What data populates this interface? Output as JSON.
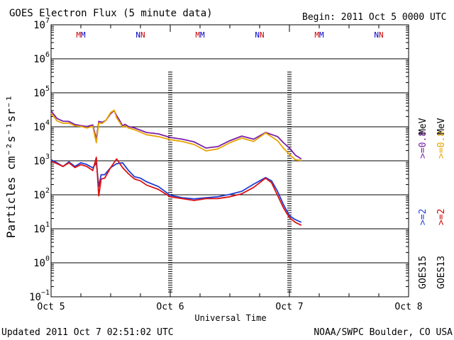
{
  "chart_data": {
    "type": "line",
    "title": "GOES Electron Flux (5 minute data)",
    "begin_label": "Begin: 2011 Oct 5 0000 UTC",
    "xlabel": "Universal Time",
    "ylabel": "Particles cm⁻²s⁻¹sr⁻¹",
    "updated": "Updated 2011 Oct  7 02:51:02 UTC",
    "source": "NOAA/SWPC Boulder, CO USA",
    "x_unit": "days since 2011 Oct 5 0000 UTC",
    "xlim": [
      0,
      3
    ],
    "ylim_log10": [
      -1,
      7
    ],
    "y_scale": "log",
    "x_ticks": [
      {
        "x": 0,
        "label": "Oct 5"
      },
      {
        "x": 1,
        "label": "Oct 6"
      },
      {
        "x": 2,
        "label": "Oct 7"
      },
      {
        "x": 3,
        "label": "Oct 8"
      }
    ],
    "y_ticks": [
      {
        "exp": 7,
        "base": "10",
        "sup": "7"
      },
      {
        "exp": 6,
        "base": "10",
        "sup": "6"
      },
      {
        "exp": 5,
        "base": "10",
        "sup": "5"
      },
      {
        "exp": 4,
        "base": "10",
        "sup": "4"
      },
      {
        "exp": 3,
        "base": "10",
        "sup": "3"
      },
      {
        "exp": 2,
        "base": "10",
        "sup": "2"
      },
      {
        "exp": 1,
        "base": "10",
        "sup": "1"
      },
      {
        "exp": 0,
        "base": "10",
        "sup": "0"
      },
      {
        "exp": -1,
        "base": "10",
        "sup": "−1"
      }
    ],
    "threshold": {
      "value": 1000,
      "label": "1000"
    },
    "day_markers": [
      1,
      2
    ],
    "top_markers": [
      {
        "x": 0.25,
        "label": "M",
        "letters": [
          "M",
          "M"
        ],
        "colors": [
          "#cc0000",
          "#0000cc"
        ]
      },
      {
        "x": 0.75,
        "label": "N",
        "letters": [
          "N",
          "N"
        ],
        "colors": [
          "#0000cc",
          "#cc0000"
        ]
      },
      {
        "x": 1.25,
        "label": "M",
        "letters": [
          "M",
          "M"
        ],
        "colors": [
          "#cc0000",
          "#0000cc"
        ]
      },
      {
        "x": 1.75,
        "label": "N",
        "letters": [
          "N",
          "N"
        ],
        "colors": [
          "#0000cc",
          "#cc0000"
        ]
      },
      {
        "x": 2.25,
        "label": "M",
        "letters": [
          "M",
          "M"
        ],
        "colors": [
          "#cc0000",
          "#0000cc"
        ]
      },
      {
        "x": 2.75,
        "label": "N",
        "letters": [
          "N",
          "N"
        ],
        "colors": [
          "#0000cc",
          "#cc0000"
        ]
      }
    ],
    "legend": {
      "position": "right",
      "rows": [
        {
          "satellite": "GOES13",
          "sat_color": "#000000",
          "entries": [
            {
              "text": ">=2",
              "color": "#cc0000"
            },
            {
              "text": ">=0.8",
              "color": "#e8a400"
            },
            {
              "text": "MeV",
              "color": "#000000"
            }
          ]
        },
        {
          "satellite": "GOES15",
          "sat_color": "#000000",
          "entries": [
            {
              "text": ">=2",
              "color": "#1f3fd6"
            },
            {
              "text": ">=0.8",
              "color": "#7a1fa8"
            },
            {
              "text": "MeV",
              "color": "#000000"
            }
          ]
        }
      ]
    },
    "series": [
      {
        "name": "GOES15 >=0.8 MeV",
        "color": "#7a1fa8",
        "x": [
          0,
          0.05,
          0.1,
          0.15,
          0.2,
          0.25,
          0.3,
          0.35,
          0.38,
          0.4,
          0.43,
          0.46,
          0.5,
          0.53,
          0.55,
          0.58,
          0.6,
          0.62,
          0.65,
          0.7,
          0.8,
          0.9,
          1.0,
          1.1,
          1.2,
          1.3,
          1.4,
          1.5,
          1.6,
          1.7,
          1.8,
          1.9,
          1.95,
          2.0,
          2.05,
          2.1
        ],
        "y": [
          30000,
          17000,
          15000,
          14000,
          12000,
          10500,
          10500,
          11000,
          4500,
          14000,
          14000,
          15000,
          25000,
          29000,
          22000,
          14000,
          11000,
          11500,
          10500,
          9000,
          7000,
          6000,
          5000,
          4200,
          3700,
          2300,
          2700,
          3800,
          5500,
          4200,
          7000,
          5000,
          3500,
          2300,
          1500,
          1100
        ]
      },
      {
        "name": "GOES13 >=0.8 MeV",
        "color": "#e8a400",
        "x": [
          0,
          0.05,
          0.1,
          0.15,
          0.2,
          0.25,
          0.3,
          0.35,
          0.38,
          0.4,
          0.43,
          0.46,
          0.5,
          0.53,
          0.55,
          0.58,
          0.6,
          0.62,
          0.65,
          0.7,
          0.8,
          0.9,
          1.0,
          1.1,
          1.2,
          1.3,
          1.4,
          1.5,
          1.6,
          1.7,
          1.8,
          1.9,
          1.95,
          2.0,
          2.05,
          2.1
        ],
        "y": [
          26000,
          14500,
          13000,
          12500,
          11000,
          10000,
          9500,
          10000,
          3500,
          12500,
          13000,
          15000,
          27000,
          30000,
          19000,
          12500,
          10000,
          10500,
          9500,
          8000,
          6000,
          5000,
          4300,
          3600,
          3100,
          1900,
          2300,
          3300,
          4800,
          3600,
          6800,
          3800,
          2400,
          1500,
          1100,
          1000
        ]
      },
      {
        "name": "GOES15 >=2 MeV",
        "color": "#1f3fd6",
        "x": [
          0,
          0.05,
          0.1,
          0.15,
          0.2,
          0.25,
          0.3,
          0.35,
          0.38,
          0.4,
          0.42,
          0.45,
          0.5,
          0.55,
          0.6,
          0.65,
          0.7,
          0.75,
          0.8,
          0.9,
          1.0,
          1.1,
          1.2,
          1.3,
          1.4,
          1.5,
          1.6,
          1.7,
          1.8,
          1.85,
          1.9,
          1.95,
          2.0,
          2.05,
          2.1
        ],
        "y": [
          1100,
          850,
          700,
          900,
          700,
          850,
          800,
          600,
          900,
          170,
          400,
          380,
          650,
          800,
          900,
          500,
          350,
          300,
          250,
          170,
          100,
          80,
          78,
          80,
          90,
          100,
          130,
          200,
          330,
          250,
          130,
          50,
          25,
          18,
          16
        ]
      },
      {
        "name": "GOES13 >=2 MeV",
        "color": "#dd1111",
        "x": [
          0,
          0.05,
          0.1,
          0.15,
          0.2,
          0.25,
          0.3,
          0.35,
          0.38,
          0.4,
          0.42,
          0.45,
          0.5,
          0.55,
          0.6,
          0.65,
          0.7,
          0.75,
          0.8,
          0.9,
          1.0,
          1.1,
          1.2,
          1.3,
          1.4,
          1.5,
          1.6,
          1.7,
          1.8,
          1.85,
          1.9,
          1.95,
          2.0,
          2.05,
          2.1
        ],
        "y": [
          1000,
          800,
          700,
          850,
          650,
          750,
          700,
          500,
          1300,
          90,
          300,
          300,
          650,
          1100,
          650,
          400,
          300,
          250,
          200,
          140,
          90,
          75,
          70,
          75,
          80,
          85,
          110,
          160,
          320,
          220,
          100,
          40,
          22,
          15,
          13
        ]
      }
    ]
  }
}
